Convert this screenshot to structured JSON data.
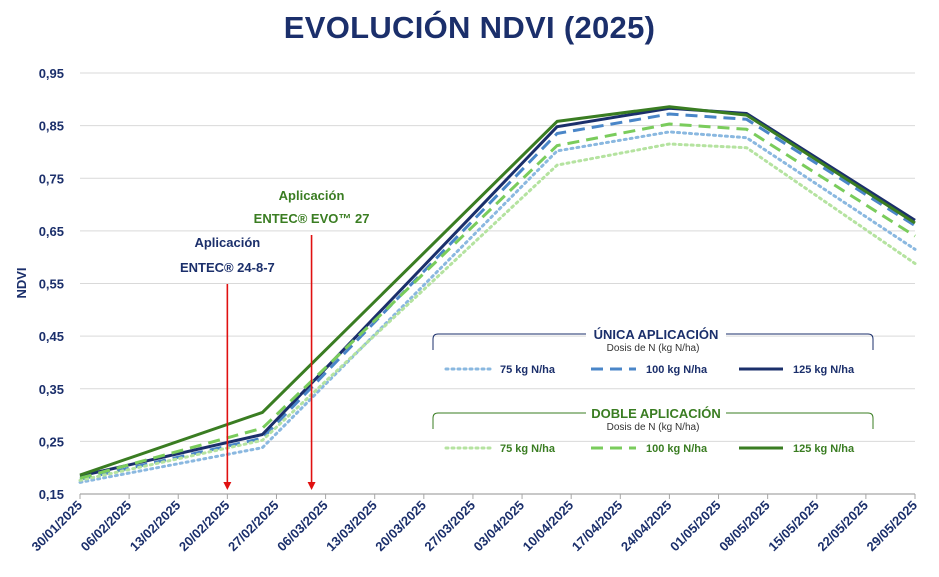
{
  "chart_data": {
    "type": "line",
    "title": "EVOLUCIÓN NDVI (2025)",
    "ylabel": "NDVI",
    "xlabel": "",
    "ylim": [
      0.15,
      0.95
    ],
    "yticks": [
      "0,95",
      "0,85",
      "0,75",
      "0,65",
      "0,55",
      "0,45",
      "0,35",
      "0,25",
      "0,15"
    ],
    "x": [
      "30/01/2025",
      "06/02/2025",
      "13/02/2025",
      "20/02/2025",
      "27/02/2025",
      "06/03/2025",
      "13/03/2025",
      "20/03/2025",
      "27/03/2025",
      "03/04/2025",
      "10/04/2025",
      "17/04/2025",
      "24/04/2025",
      "01/05/2025",
      "08/05/2025",
      "15/05/2025",
      "22/05/2025",
      "29/05/2025"
    ],
    "series": [
      {
        "name": "75 kg N/ha",
        "group": "unica",
        "color": "#8ab8e0",
        "dash": "dot",
        "x": [
          "30/01/2025",
          "25/02/2025",
          "08/04/2025",
          "24/04/2025",
          "05/05/2025",
          "29/05/2025"
        ],
        "values": [
          0.172,
          0.238,
          0.802,
          0.838,
          0.827,
          0.615
        ]
      },
      {
        "name": "100 kg N/ha",
        "group": "unica",
        "color": "#4a86c8",
        "dash": "dash",
        "x": [
          "30/01/2025",
          "25/02/2025",
          "08/04/2025",
          "24/04/2025",
          "05/05/2025",
          "29/05/2025"
        ],
        "values": [
          0.178,
          0.256,
          0.835,
          0.872,
          0.862,
          0.66
        ]
      },
      {
        "name": "125 kg N/ha",
        "group": "unica",
        "color": "#1b2f6b",
        "dash": "solid",
        "x": [
          "30/01/2025",
          "25/02/2025",
          "08/04/2025",
          "24/04/2025",
          "05/05/2025",
          "29/05/2025"
        ],
        "values": [
          0.184,
          0.263,
          0.848,
          0.883,
          0.873,
          0.67
        ]
      },
      {
        "name": "75 kg N/ha",
        "group": "doble",
        "color": "#b5e3a0",
        "dash": "dot",
        "x": [
          "30/01/2025",
          "25/02/2025",
          "08/04/2025",
          "24/04/2025",
          "05/05/2025",
          "29/05/2025"
        ],
        "values": [
          0.176,
          0.252,
          0.775,
          0.815,
          0.808,
          0.588
        ]
      },
      {
        "name": "100 kg N/ha",
        "group": "doble",
        "color": "#7acc5c",
        "dash": "dash",
        "x": [
          "30/01/2025",
          "25/02/2025",
          "08/04/2025",
          "24/04/2025",
          "05/05/2025",
          "29/05/2025"
        ],
        "values": [
          0.18,
          0.275,
          0.812,
          0.853,
          0.843,
          0.64
        ]
      },
      {
        "name": "125 kg N/ha",
        "group": "doble",
        "color": "#3a7d22",
        "dash": "solid",
        "x": [
          "30/01/2025",
          "25/02/2025",
          "08/04/2025",
          "24/04/2025",
          "05/05/2025",
          "29/05/2025"
        ],
        "values": [
          0.186,
          0.305,
          0.858,
          0.886,
          0.87,
          0.665
        ]
      }
    ],
    "annotations": [
      {
        "lines": [
          "Aplicación",
          "ENTEC® 24-8-7"
        ],
        "x": "20/02/2025",
        "color": "#1b2f6b"
      },
      {
        "lines": [
          "Aplicación",
          "ENTEC® EVO™ 27"
        ],
        "x": "04/03/2025",
        "color": "#3a7d22"
      }
    ],
    "legend": {
      "placement": "bottom-right",
      "groups": [
        {
          "title": "ÚNICA APLICACIÓN",
          "subtitle": "Dosis de N (kg N/ha)",
          "color": "#1b2f6b"
        },
        {
          "title": "DOBLE APLICACIÓN",
          "subtitle": "Dosis de N (kg N/ha)",
          "color": "#3a7d22"
        }
      ]
    },
    "grid": true
  },
  "colors": {
    "title": "#1b2f6b",
    "arrow": "#e01010",
    "grid": "#d9d9d9"
  }
}
